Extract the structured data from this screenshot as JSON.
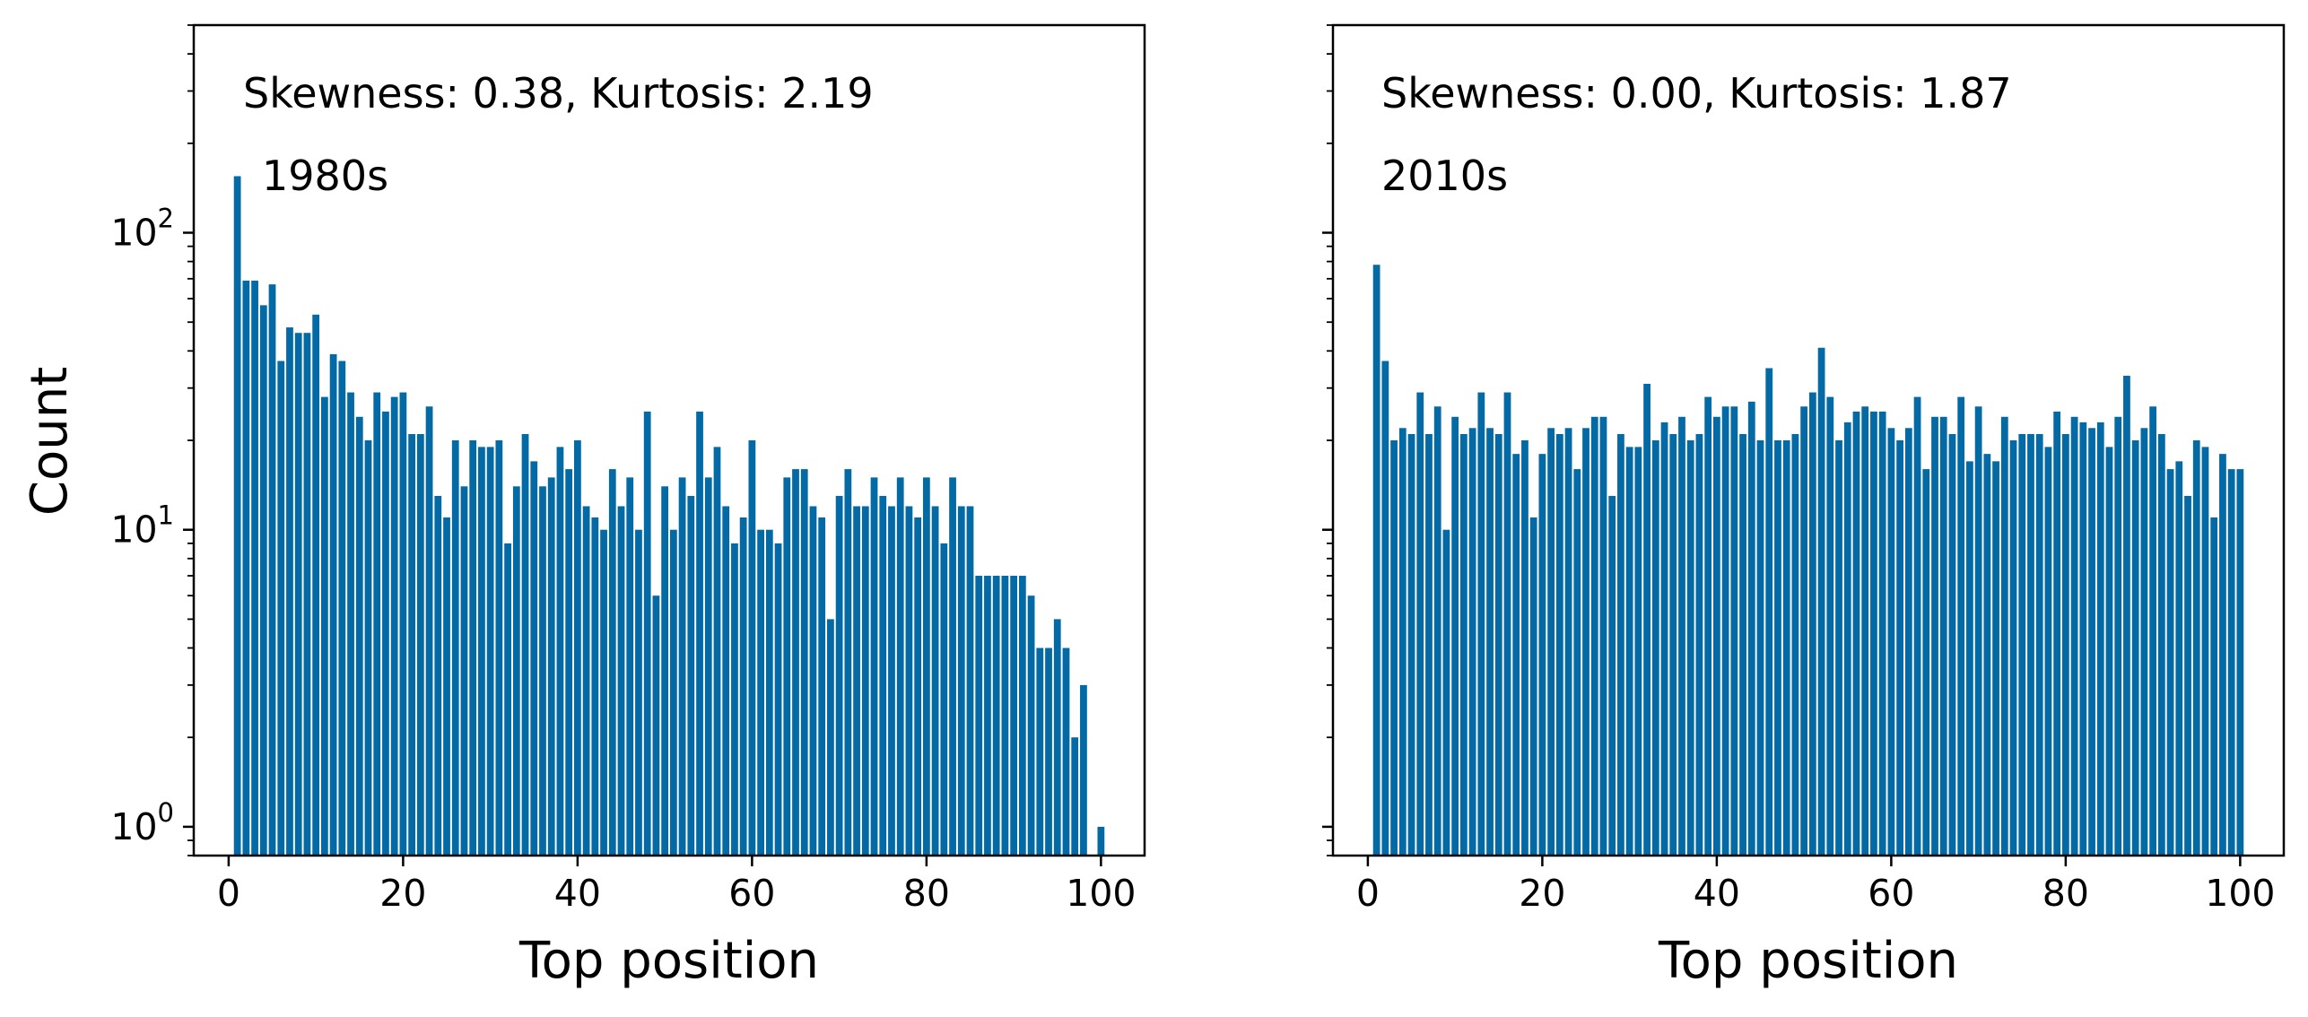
{
  "chart_data": [
    {
      "type": "bar",
      "xlabel": "Top position",
      "ylabel": "Count",
      "yscale": "log",
      "ylim": [
        0.8,
        500
      ],
      "xlim": [
        -4,
        105
      ],
      "xticks": [
        "0",
        "20",
        "40",
        "60",
        "80",
        "100"
      ],
      "yticks": [
        {
          "value": 1,
          "base": "10",
          "exp": "0"
        },
        {
          "value": 10,
          "base": "10",
          "exp": "1"
        },
        {
          "value": 100,
          "base": "10",
          "exp": "2"
        }
      ],
      "bar_color": "#046aa5",
      "annotations": [
        "Skewness: 0.38, Kurtosis: 2.19",
        "1980s"
      ],
      "x": [
        1,
        2,
        3,
        4,
        5,
        6,
        7,
        8,
        9,
        10,
        11,
        12,
        13,
        14,
        15,
        16,
        17,
        18,
        19,
        20,
        21,
        22,
        23,
        24,
        25,
        26,
        27,
        28,
        29,
        30,
        31,
        32,
        33,
        34,
        35,
        36,
        37,
        38,
        39,
        40,
        41,
        42,
        43,
        44,
        45,
        46,
        47,
        48,
        49,
        50,
        51,
        52,
        53,
        54,
        55,
        56,
        57,
        58,
        59,
        60,
        61,
        62,
        63,
        64,
        65,
        66,
        67,
        68,
        69,
        70,
        71,
        72,
        73,
        74,
        75,
        76,
        77,
        78,
        79,
        80,
        81,
        82,
        83,
        84,
        85,
        86,
        87,
        88,
        89,
        90,
        91,
        92,
        93,
        94,
        95,
        96,
        97,
        98,
        99,
        100
      ],
      "values": [
        155,
        69,
        69,
        57,
        67,
        37,
        48,
        46,
        46,
        53,
        28,
        39,
        37,
        29,
        24,
        20,
        29,
        25,
        28,
        29,
        21,
        21,
        26,
        13,
        11,
        20,
        14,
        20,
        19,
        19,
        20,
        9,
        14,
        21,
        17,
        14,
        15,
        19,
        16,
        20,
        12,
        11,
        10,
        16,
        12,
        15,
        10,
        25,
        6,
        14,
        10,
        15,
        13,
        25,
        15,
        19,
        12,
        9,
        11,
        20,
        10,
        10,
        9,
        15,
        16,
        16,
        12,
        11,
        5,
        13,
        16,
        12,
        12,
        15,
        13,
        12,
        15,
        12,
        11,
        15,
        12,
        9,
        15,
        12,
        12,
        7,
        7,
        7,
        7,
        7,
        7,
        6,
        4,
        4,
        5,
        4,
        2,
        3,
        0,
        1
      ]
    },
    {
      "type": "bar",
      "xlabel": "Top position",
      "ylabel": "",
      "yscale": "log",
      "ylim": [
        0.8,
        500
      ],
      "xlim": [
        -4,
        105
      ],
      "xticks": [
        "0",
        "20",
        "40",
        "60",
        "80",
        "100"
      ],
      "bar_color": "#046aa5",
      "annotations": [
        "Skewness: 0.00, Kurtosis: 1.87",
        "2010s"
      ],
      "x": [
        1,
        2,
        3,
        4,
        5,
        6,
        7,
        8,
        9,
        10,
        11,
        12,
        13,
        14,
        15,
        16,
        17,
        18,
        19,
        20,
        21,
        22,
        23,
        24,
        25,
        26,
        27,
        28,
        29,
        30,
        31,
        32,
        33,
        34,
        35,
        36,
        37,
        38,
        39,
        40,
        41,
        42,
        43,
        44,
        45,
        46,
        47,
        48,
        49,
        50,
        51,
        52,
        53,
        54,
        55,
        56,
        57,
        58,
        59,
        60,
        61,
        62,
        63,
        64,
        65,
        66,
        67,
        68,
        69,
        70,
        71,
        72,
        73,
        74,
        75,
        76,
        77,
        78,
        79,
        80,
        81,
        82,
        83,
        84,
        85,
        86,
        87,
        88,
        89,
        90,
        91,
        92,
        93,
        94,
        95,
        96,
        97,
        98,
        99,
        100
      ],
      "values": [
        78,
        37,
        20,
        22,
        21,
        29,
        21,
        26,
        10,
        24,
        21,
        22,
        29,
        22,
        21,
        29,
        18,
        20,
        11,
        18,
        22,
        21,
        22,
        16,
        22,
        24,
        24,
        13,
        21,
        19,
        19,
        31,
        20,
        23,
        21,
        24,
        20,
        21,
        28,
        24,
        26,
        26,
        21,
        27,
        20,
        35,
        20,
        20,
        21,
        26,
        29,
        41,
        28,
        20,
        23,
        25,
        26,
        25,
        25,
        22,
        20,
        22,
        28,
        16,
        24,
        24,
        21,
        28,
        17,
        26,
        18,
        17,
        24,
        20,
        21,
        21,
        21,
        19,
        25,
        21,
        24,
        23,
        22,
        23,
        19,
        24,
        33,
        20,
        22,
        26,
        21,
        16,
        17,
        13,
        20,
        19,
        11,
        18,
        16,
        16
      ]
    }
  ]
}
